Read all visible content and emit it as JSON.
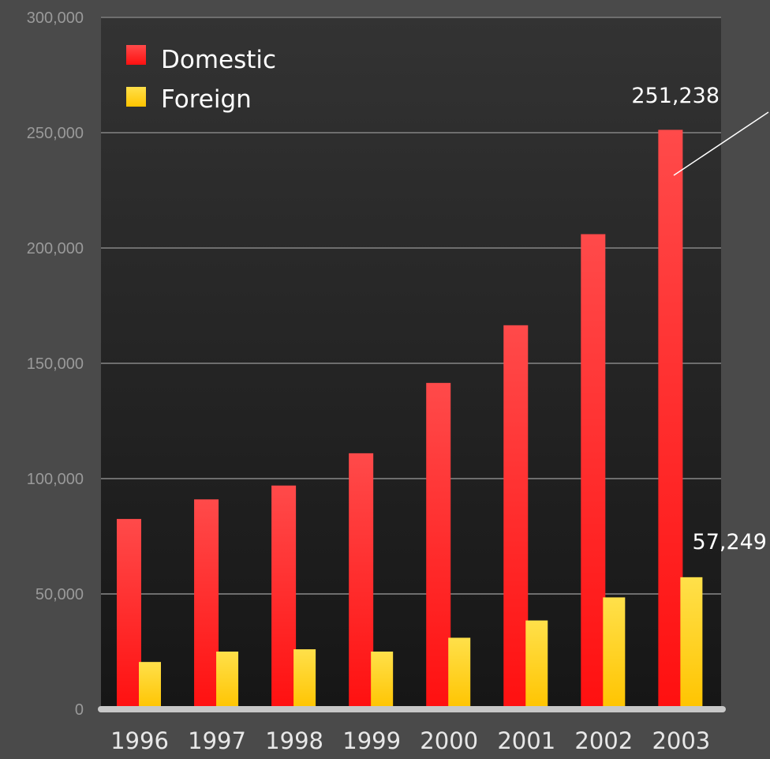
{
  "chart_data": {
    "type": "bar",
    "title": "",
    "xlabel": "",
    "ylabel": "",
    "categories": [
      "1996",
      "1997",
      "1998",
      "1999",
      "2000",
      "2001",
      "2002",
      "2003"
    ],
    "series": [
      {
        "name": "Domestic",
        "values": [
          82500,
          91000,
          97000,
          111000,
          141500,
          166500,
          206000,
          251238
        ],
        "color": "#ff3030"
      },
      {
        "name": "Foreign",
        "values": [
          20500,
          25000,
          26000,
          25000,
          31000,
          38500,
          48500,
          57249
        ],
        "color": "#ffd233"
      }
    ],
    "ylim": [
      0,
      300000
    ],
    "yticks": [
      {
        "value": 0,
        "label": "0"
      },
      {
        "value": 50000,
        "label": "50,000"
      },
      {
        "value": 100000,
        "label": "100,000"
      },
      {
        "value": 150000,
        "label": "150,000"
      },
      {
        "value": 200000,
        "label": "200,000"
      },
      {
        "value": 250000,
        "label": "250,000"
      },
      {
        "value": 300000,
        "label": "300,000"
      }
    ],
    "grid": true,
    "legend": "top-left",
    "annotations": [
      {
        "text": "251,238",
        "series": "Domestic",
        "category": "2003"
      },
      {
        "text": "57,249",
        "series": "Foreign",
        "category": "2003"
      }
    ],
    "background": "#1c1c1c",
    "page_background": "#4a4a4a"
  }
}
